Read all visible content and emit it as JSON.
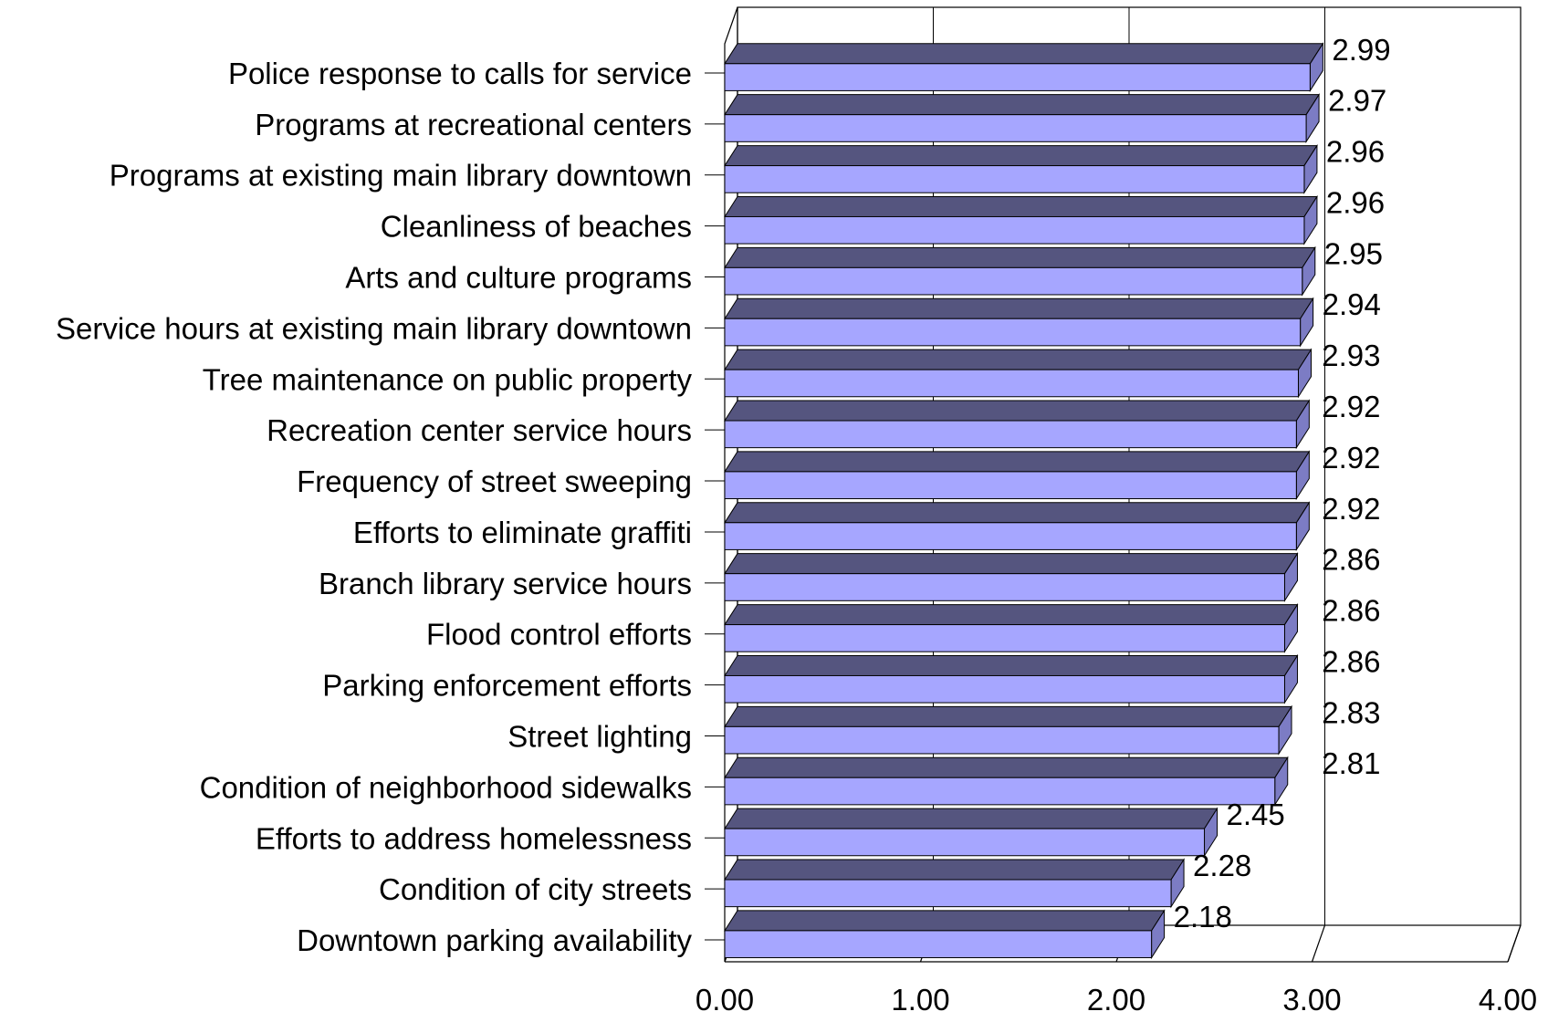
{
  "chart_data": {
    "type": "bar",
    "orientation": "horizontal",
    "three_d": true,
    "categories": [
      "Police response to calls for service",
      "Programs at recreational centers",
      "Programs at existing main library downtown",
      "Cleanliness of beaches",
      "Arts and culture programs",
      "Service hours at existing main library downtown",
      "Tree maintenance on public property",
      "Recreation center service hours",
      "Frequency of street sweeping",
      "Efforts to eliminate graffiti",
      "Branch library service hours",
      "Flood control efforts",
      "Parking enforcement efforts",
      "Street lighting",
      "Condition of neighborhood sidewalks",
      "Efforts to address homelessness",
      "Condition of city streets",
      "Downtown parking availability"
    ],
    "values": [
      2.99,
      2.97,
      2.96,
      2.96,
      2.95,
      2.94,
      2.93,
      2.92,
      2.92,
      2.92,
      2.86,
      2.86,
      2.86,
      2.83,
      2.81,
      2.45,
      2.28,
      2.18
    ],
    "value_labels": [
      "2.99",
      "2.97",
      "2.96",
      "2.96",
      "2.95",
      "2.94",
      "2.93",
      "2.92",
      "2.92",
      "2.92",
      "2.86",
      "2.86",
      "2.86",
      "2.83",
      "2.81",
      "2.45",
      "2.28",
      "2.18"
    ],
    "x_ticks": [
      "0.00",
      "1.00",
      "2.00",
      "3.00",
      "4.00"
    ],
    "xlim": [
      0,
      4
    ],
    "grid": true,
    "legend": "none",
    "colors": {
      "bar_front": "#a6a6ff",
      "bar_top": "#55557f",
      "bar_side": "#7c7cc4",
      "bar_edge": "#000000",
      "frame": "#000000",
      "grid": "#000000"
    }
  }
}
